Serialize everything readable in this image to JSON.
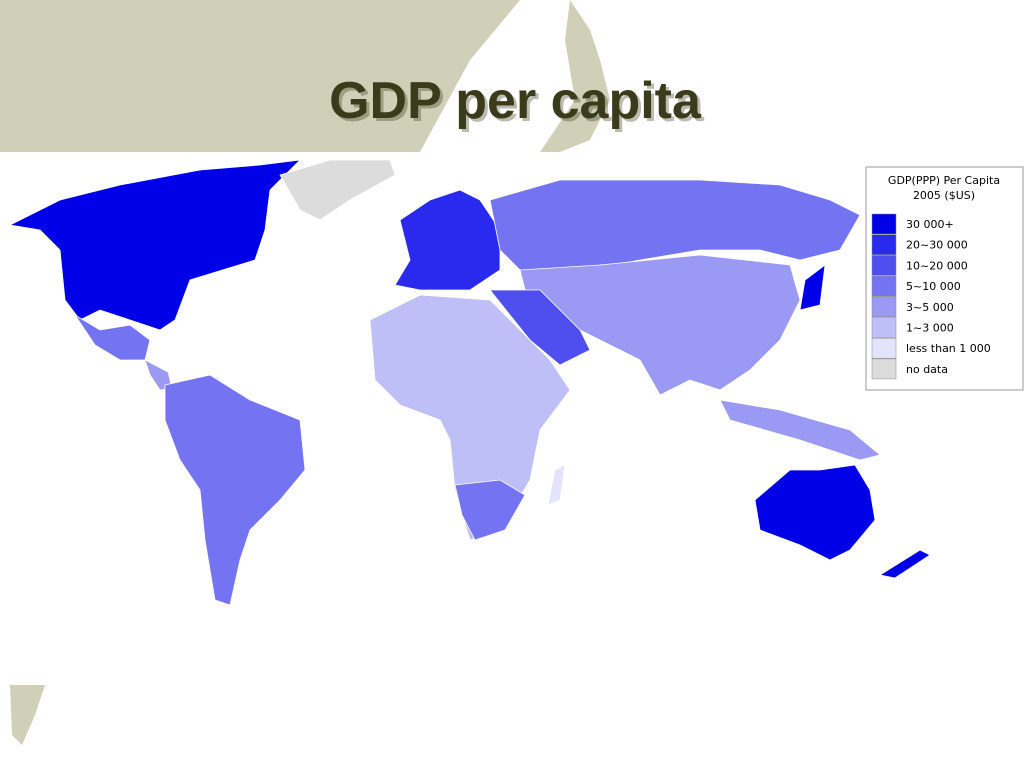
{
  "title": "GDP per capita",
  "legend": {
    "title_lines": [
      "GDP(PPP) Per Capita",
      "2005 ($US)"
    ],
    "items": [
      {
        "label": "30 000+",
        "color": "#0000e8"
      },
      {
        "label": "20~30 000",
        "color": "#2a2aee"
      },
      {
        "label": "10~20 000",
        "color": "#4f4ff0"
      },
      {
        "label": "5~10 000",
        "color": "#7474f2"
      },
      {
        "label": "3~5 000",
        "color": "#9a9af5"
      },
      {
        "label": "1~3 000",
        "color": "#bfbff8"
      },
      {
        "label": "less than 1 000",
        "color": "#e3e3fb"
      },
      {
        "label": "no data",
        "color": "#dcdcdc"
      }
    ]
  }
}
